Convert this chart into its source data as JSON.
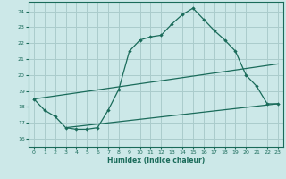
{
  "title": "",
  "xlabel": "Humidex (Indice chaleur)",
  "ylabel": "",
  "bg_color": "#cce8e8",
  "grid_color": "#aacccc",
  "line_color": "#1a6b5a",
  "xlim": [
    -0.5,
    23.5
  ],
  "ylim": [
    15.5,
    24.6
  ],
  "xticks": [
    0,
    1,
    2,
    3,
    4,
    5,
    6,
    7,
    8,
    9,
    10,
    11,
    12,
    13,
    14,
    15,
    16,
    17,
    18,
    19,
    20,
    21,
    22,
    23
  ],
  "yticks": [
    16,
    17,
    18,
    19,
    20,
    21,
    22,
    23,
    24
  ],
  "line1_x": [
    0,
    1,
    2,
    3,
    4,
    5,
    6,
    7,
    8,
    9,
    10,
    11,
    12,
    13,
    14,
    15,
    16,
    17,
    18,
    19,
    20,
    21,
    22,
    23
  ],
  "line1_y": [
    18.5,
    17.8,
    17.4,
    16.7,
    16.6,
    16.6,
    16.7,
    17.8,
    19.1,
    21.5,
    22.2,
    22.4,
    22.5,
    23.2,
    23.8,
    24.2,
    23.5,
    22.8,
    22.2,
    21.5,
    20.0,
    19.3,
    18.2,
    18.2
  ],
  "line2_x": [
    0,
    23
  ],
  "line2_y": [
    18.5,
    20.7
  ],
  "line3_x": [
    3,
    23
  ],
  "line3_y": [
    16.7,
    18.2
  ]
}
